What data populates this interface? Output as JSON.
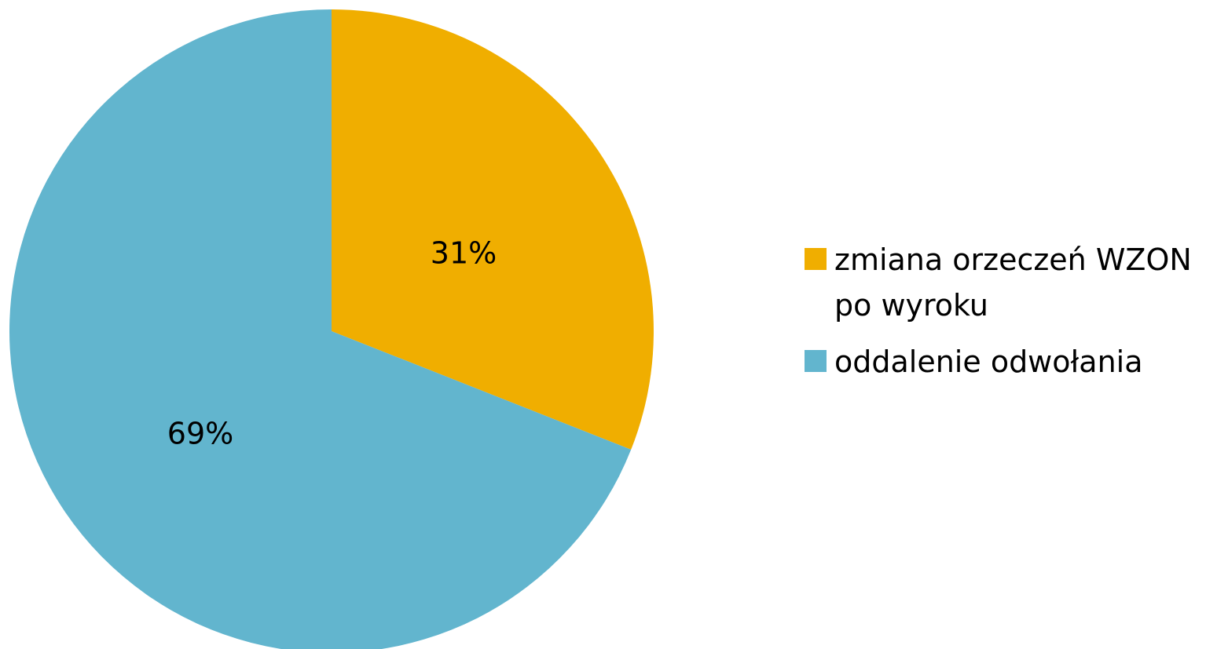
{
  "chart_data": {
    "type": "pie",
    "title": "",
    "slices": [
      {
        "label": "zmiana orzeczeń WZON po wyroku",
        "value": 31,
        "display": "31%",
        "color": "#F0AE00"
      },
      {
        "label": "oddalenie odwołania",
        "value": 69,
        "display": "69%",
        "color": "#62B5CE"
      }
    ],
    "legend": {
      "position": "right",
      "entries": [
        {
          "lines": [
            "zmiana orzeczeń WZON",
            "po wyroku"
          ],
          "color": "#F0AE00"
        },
        {
          "lines": [
            "oddalenie odwołania"
          ],
          "color": "#62B5CE"
        }
      ]
    }
  }
}
